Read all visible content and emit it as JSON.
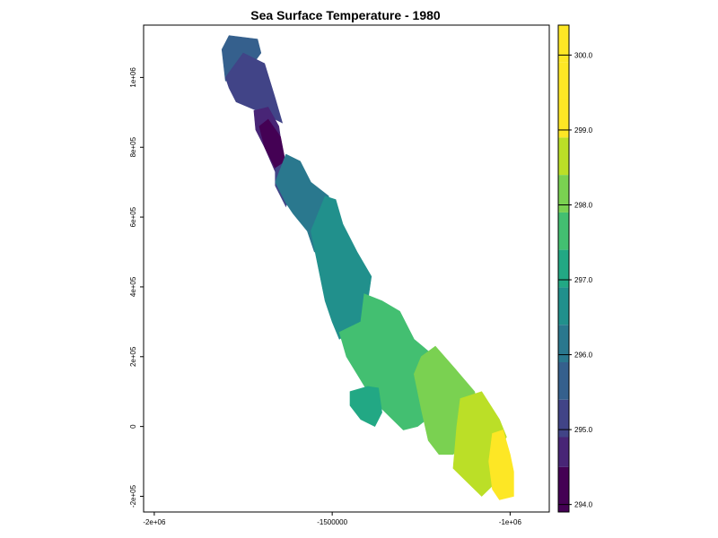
{
  "chart_data": {
    "type": "heatmap",
    "title": "Sea Surface Temperature - 1980",
    "xlabel": "",
    "ylabel": "",
    "x_ticks": [
      {
        "value": -2000000,
        "label": "-2e+06"
      },
      {
        "value": -1500000,
        "label": "-1500000"
      },
      {
        "value": -1000000,
        "label": "-1e+06"
      }
    ],
    "y_ticks": [
      {
        "value": -200000,
        "label": "-2e+05"
      },
      {
        "value": 0,
        "label": "0"
      },
      {
        "value": 200000,
        "label": "2e+05"
      },
      {
        "value": 400000,
        "label": "4e+05"
      },
      {
        "value": 600000,
        "label": "6e+05"
      },
      {
        "value": 800000,
        "label": "8e+05"
      },
      {
        "value": 1000000,
        "label": "1e+06"
      }
    ],
    "xlim": [
      -2030000,
      -890000
    ],
    "ylim": [
      -245000,
      1150000
    ],
    "legend": {
      "position": "right",
      "range": [
        293.9,
        300.4
      ],
      "ticks": [
        {
          "value": 294.0,
          "label": "294.0"
        },
        {
          "value": 295.0,
          "label": "295.0"
        },
        {
          "value": 296.0,
          "label": "296.0"
        },
        {
          "value": 297.0,
          "label": "297.0"
        },
        {
          "value": 298.0,
          "label": "298.0"
        },
        {
          "value": 299.0,
          "label": "299.0"
        },
        {
          "value": 300.0,
          "label": "300.0"
        }
      ],
      "breaks": [
        293.9,
        294.5,
        294.9,
        295.4,
        295.9,
        296.4,
        296.9,
        297.4,
        297.9,
        298.4,
        298.9,
        299.4,
        299.9,
        300.4
      ],
      "colors": [
        "#440154",
        "#482576",
        "#414487",
        "#35608d",
        "#2a788e",
        "#21908c",
        "#22a884",
        "#43bf71",
        "#7ad151",
        "#bbdf27",
        "#fde725",
        "#fde725",
        "#fde725"
      ]
    },
    "zones": [
      {
        "value": 295.7,
        "polygon": [
          [
            -1790000,
            1120000
          ],
          [
            -1710000,
            1110000
          ],
          [
            -1700000,
            1070000
          ],
          [
            -1750000,
            1000000
          ],
          [
            -1800000,
            990000
          ],
          [
            -1810000,
            1080000
          ]
        ]
      },
      {
        "value": 295.3,
        "polygon": [
          [
            -1800000,
            1000000
          ],
          [
            -1750000,
            1070000
          ],
          [
            -1690000,
            1040000
          ],
          [
            -1660000,
            940000
          ],
          [
            -1640000,
            870000
          ],
          [
            -1700000,
            900000
          ],
          [
            -1770000,
            930000
          ],
          [
            -1790000,
            970000
          ]
        ]
      },
      {
        "value": 294.8,
        "polygon": [
          [
            -1720000,
            905000
          ],
          [
            -1680000,
            915000
          ],
          [
            -1650000,
            860000
          ],
          [
            -1640000,
            790000
          ],
          [
            -1660000,
            730000
          ],
          [
            -1690000,
            800000
          ],
          [
            -1715000,
            850000
          ]
        ]
      },
      {
        "value": 294.2,
        "polygon": [
          [
            -1705000,
            860000
          ],
          [
            -1680000,
            880000
          ],
          [
            -1645000,
            830000
          ],
          [
            -1630000,
            750000
          ],
          [
            -1660000,
            740000
          ],
          [
            -1690000,
            800000
          ]
        ]
      },
      {
        "value": 295.3,
        "polygon": [
          [
            -1660000,
            740000
          ],
          [
            -1630000,
            760000
          ],
          [
            -1610000,
            700000
          ],
          [
            -1630000,
            630000
          ],
          [
            -1660000,
            690000
          ]
        ]
      },
      {
        "value": 296.3,
        "polygon": [
          [
            -1660000,
            700000
          ],
          [
            -1630000,
            780000
          ],
          [
            -1590000,
            760000
          ],
          [
            -1560000,
            700000
          ],
          [
            -1510000,
            660000
          ],
          [
            -1500000,
            540000
          ],
          [
            -1550000,
            500000
          ],
          [
            -1570000,
            560000
          ],
          [
            -1610000,
            610000
          ],
          [
            -1630000,
            640000
          ]
        ]
      },
      {
        "value": 296.8,
        "polygon": [
          [
            -1560000,
            560000
          ],
          [
            -1520000,
            660000
          ],
          [
            -1490000,
            650000
          ],
          [
            -1470000,
            580000
          ],
          [
            -1430000,
            500000
          ],
          [
            -1390000,
            430000
          ],
          [
            -1400000,
            360000
          ],
          [
            -1420000,
            290000
          ],
          [
            -1480000,
            250000
          ],
          [
            -1500000,
            300000
          ],
          [
            -1520000,
            360000
          ],
          [
            -1540000,
            460000
          ]
        ]
      },
      {
        "value": 297.4,
        "polygon": [
          [
            -1480000,
            270000
          ],
          [
            -1420000,
            300000
          ],
          [
            -1410000,
            380000
          ],
          [
            -1360000,
            360000
          ],
          [
            -1310000,
            330000
          ],
          [
            -1270000,
            250000
          ],
          [
            -1200000,
            190000
          ],
          [
            -1190000,
            130000
          ],
          [
            -1150000,
            60000
          ],
          [
            -1210000,
            40000
          ],
          [
            -1260000,
            0
          ],
          [
            -1300000,
            -10000
          ],
          [
            -1360000,
            50000
          ],
          [
            -1400000,
            100000
          ],
          [
            -1430000,
            150000
          ],
          [
            -1460000,
            200000
          ]
        ]
      },
      {
        "value": 296.9,
        "polygon": [
          [
            -1450000,
            100000
          ],
          [
            -1400000,
            115000
          ],
          [
            -1370000,
            110000
          ],
          [
            -1360000,
            40000
          ],
          [
            -1380000,
            0
          ],
          [
            -1420000,
            20000
          ],
          [
            -1450000,
            60000
          ]
        ]
      },
      {
        "value": 297.9,
        "polygon": [
          [
            -1250000,
            200000
          ],
          [
            -1210000,
            230000
          ],
          [
            -1150000,
            160000
          ],
          [
            -1100000,
            100000
          ],
          [
            -1080000,
            20000
          ],
          [
            -1120000,
            -30000
          ],
          [
            -1160000,
            -80000
          ],
          [
            -1200000,
            -80000
          ],
          [
            -1230000,
            -40000
          ],
          [
            -1250000,
            50000
          ],
          [
            -1270000,
            150000
          ]
        ]
      },
      {
        "value": 298.6,
        "polygon": [
          [
            -1140000,
            80000
          ],
          [
            -1080000,
            100000
          ],
          [
            -1030000,
            20000
          ],
          [
            -1010000,
            -30000
          ],
          [
            -1040000,
            -80000
          ],
          [
            -1050000,
            -170000
          ],
          [
            -1080000,
            -200000
          ],
          [
            -1120000,
            -160000
          ],
          [
            -1160000,
            -120000
          ],
          [
            -1150000,
            0
          ]
        ]
      },
      {
        "value": 299.6,
        "polygon": [
          [
            -1050000,
            -20000
          ],
          [
            -1020000,
            -10000
          ],
          [
            -1000000,
            -80000
          ],
          [
            -990000,
            -130000
          ],
          [
            -990000,
            -200000
          ],
          [
            -1030000,
            -210000
          ],
          [
            -1050000,
            -180000
          ],
          [
            -1060000,
            -100000
          ]
        ]
      }
    ]
  }
}
